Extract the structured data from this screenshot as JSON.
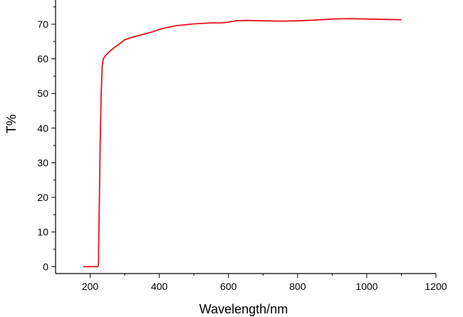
{
  "chart_data": {
    "type": "line",
    "title": "",
    "xlabel": "Wavelength/nm",
    "ylabel": "T%",
    "xlim": [
      100,
      1200
    ],
    "ylim": [
      -2,
      77
    ],
    "x_ticks": [
      200,
      400,
      600,
      800,
      1000,
      1200
    ],
    "x_tick_labels": [
      "200",
      "400",
      "600",
      "800",
      "1000",
      "1200"
    ],
    "y_ticks": [
      0,
      10,
      20,
      30,
      40,
      50,
      60,
      70
    ],
    "y_tick_labels": [
      "0",
      "10",
      "20",
      "30",
      "40",
      "50",
      "60",
      "70"
    ],
    "grid": false,
    "series": [
      {
        "color": "#e8141c",
        "x": [
          180,
          222,
          224,
          226,
          229,
          232,
          235,
          238,
          245,
          260,
          280,
          300,
          320,
          350,
          380,
          400,
          420,
          450,
          480,
          500,
          550,
          580,
          600,
          620,
          650,
          700,
          750,
          800,
          850,
          900,
          950,
          1000,
          1050,
          1100
        ],
        "y": [
          0,
          0,
          0.5,
          15,
          35,
          50,
          58,
          60,
          61,
          62.5,
          64,
          65.5,
          66.2,
          67,
          67.8,
          68.5,
          69,
          69.6,
          69.9,
          70.1,
          70.4,
          70.4,
          70.6,
          71,
          71.1,
          71,
          70.9,
          71,
          71.2,
          71.5,
          71.6,
          71.5,
          71.4,
          71.3
        ]
      }
    ]
  }
}
